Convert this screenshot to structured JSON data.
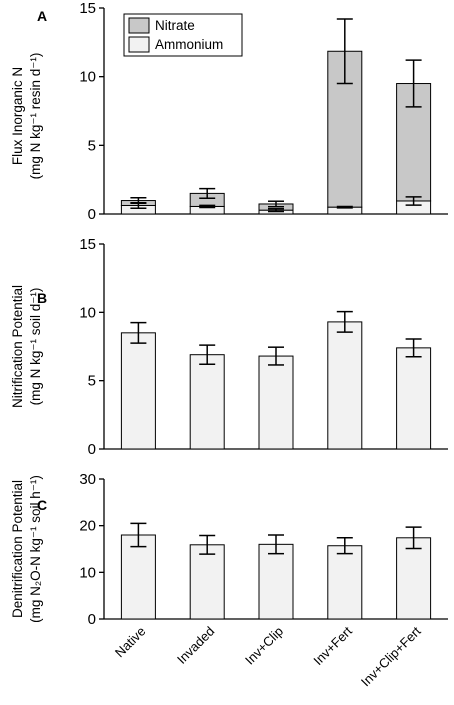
{
  "colors": {
    "nitrate": "#c8c8c8",
    "ammonium": "#f2f2f2",
    "single": "#f2f2f2",
    "stroke": "#000000"
  },
  "categories": [
    "Native",
    "Invaded",
    "Inv+Clip",
    "Inv+Fert",
    "Inv+Clip+Fert"
  ],
  "chart_data": [
    {
      "panel": "A",
      "type": "bar",
      "stacked": true,
      "ylabel_lines": [
        "Flux Inorganic N",
        "(mg N kg⁻¹ resin d⁻¹)"
      ],
      "ylim": [
        0,
        15
      ],
      "yticks": [
        0,
        5,
        10,
        15
      ],
      "legend": {
        "position": "top-left",
        "entries": [
          "Nitrate",
          "Ammonium"
        ]
      },
      "series": [
        {
          "name": "Ammonium",
          "values": [
            0.62,
            0.55,
            0.28,
            0.5,
            0.95
          ],
          "errors": [
            0.2,
            0.08,
            0.1,
            0.05,
            0.3
          ]
        },
        {
          "name": "Nitrate",
          "values": [
            0.36,
            0.95,
            0.45,
            11.35,
            8.55
          ],
          "errors": [
            0.2,
            0.35,
            0.2,
            2.35,
            1.7
          ]
        }
      ]
    },
    {
      "panel": "B",
      "type": "bar",
      "ylabel_lines": [
        "Nitrification Potential",
        "(mg N kg⁻¹ soil d⁻¹)"
      ],
      "ylim": [
        0,
        15
      ],
      "yticks": [
        0,
        5,
        10,
        15
      ],
      "series": [
        {
          "values": [
            8.5,
            6.9,
            6.8,
            9.3,
            7.4
          ],
          "errors": [
            0.75,
            0.7,
            0.65,
            0.75,
            0.65
          ]
        }
      ]
    },
    {
      "panel": "C",
      "type": "bar",
      "ylabel_lines": [
        "Denitrification Potential",
        "(mg N₂O-N kg⁻¹ soil h⁻¹)"
      ],
      "ylim": [
        0,
        30
      ],
      "yticks": [
        0,
        10,
        20,
        30
      ],
      "series": [
        {
          "values": [
            18.0,
            15.9,
            16.0,
            15.7,
            17.4
          ],
          "errors": [
            2.5,
            2.0,
            2.0,
            1.7,
            2.3
          ]
        }
      ]
    }
  ]
}
